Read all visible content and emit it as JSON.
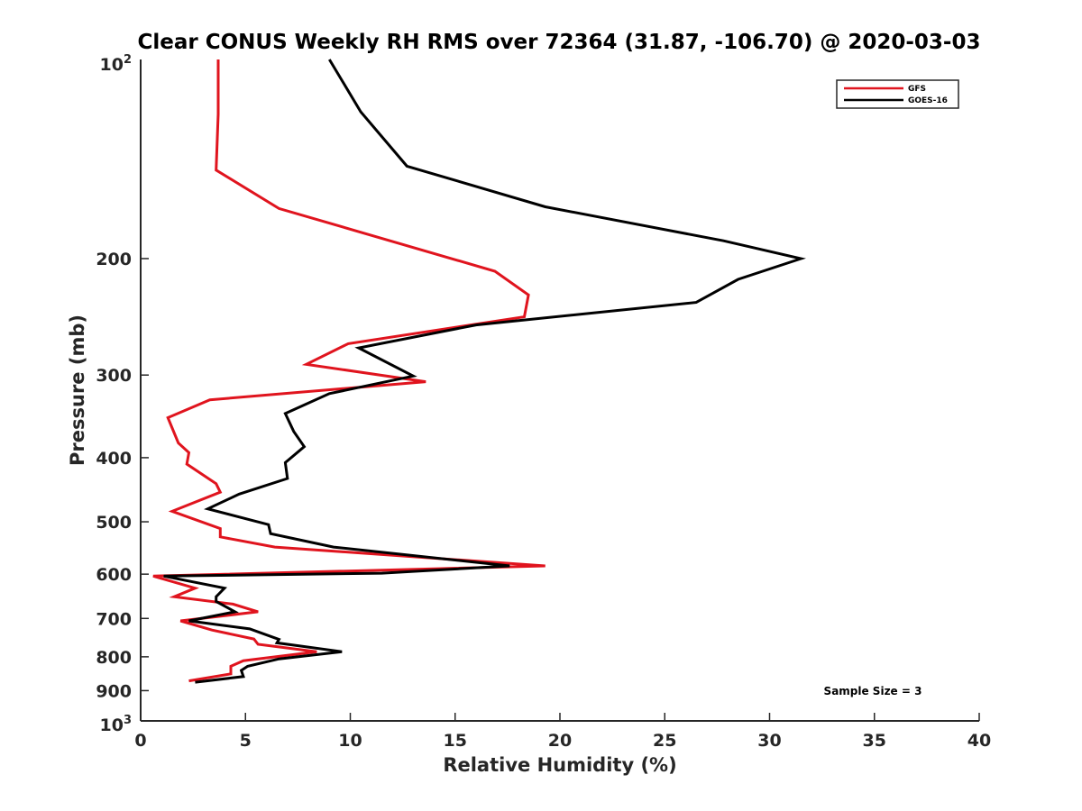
{
  "chart_data": {
    "type": "line",
    "title": "Clear CONUS Weekly RH RMS over 72364 (31.87, -106.70) @ 2020-03-03",
    "xlabel": "Relative Humidity (%)",
    "ylabel": "Pressure (mb)",
    "xlim": [
      0,
      40
    ],
    "ylim": [
      100,
      1000
    ],
    "yscale": "log",
    "yreversed": true,
    "grid": false,
    "legend_placement": "top-right",
    "x_ticks": [
      0,
      5,
      10,
      15,
      20,
      25,
      30,
      35,
      40
    ],
    "x_tick_labels": [
      "0",
      "5",
      "10",
      "15",
      "20",
      "25",
      "30",
      "35",
      "40"
    ],
    "y_ticks": [
      200,
      300,
      400,
      500,
      600,
      700,
      800,
      900
    ],
    "y_tick_labels": [
      "200",
      "300",
      "400",
      "500",
      "600",
      "700",
      "800",
      "900"
    ],
    "y_tick_top": {
      "base": "10",
      "exp": "2"
    },
    "y_tick_bottom": {
      "base": "10",
      "exp": "3"
    },
    "annotation": "Sample Size = 3",
    "series": [
      {
        "name": "GFS",
        "color": "#e0141e",
        "points": [
          [
            3.7,
            100
          ],
          [
            3.7,
            121
          ],
          [
            3.6,
            147
          ],
          [
            6.6,
            168
          ],
          [
            16.9,
            209
          ],
          [
            18.5,
            227
          ],
          [
            18.3,
            245
          ],
          [
            9.9,
            269
          ],
          [
            7.9,
            289
          ],
          [
            13.6,
            307
          ],
          [
            3.3,
            327
          ],
          [
            1.3,
            348
          ],
          [
            1.8,
            380
          ],
          [
            2.3,
            393
          ],
          [
            2.2,
            409
          ],
          [
            3.6,
            438
          ],
          [
            3.8,
            451
          ],
          [
            1.5,
            482
          ],
          [
            3.8,
            512
          ],
          [
            3.8,
            527
          ],
          [
            6.4,
            546
          ],
          [
            19.3,
            583
          ],
          [
            0.6,
            604
          ],
          [
            2.6,
            630
          ],
          [
            1.6,
            649
          ],
          [
            4.4,
            666
          ],
          [
            5.6,
            684
          ],
          [
            1.9,
            706
          ],
          [
            3.4,
            729
          ],
          [
            5.4,
            752
          ],
          [
            5.6,
            766
          ],
          [
            8.4,
            786
          ],
          [
            4.9,
            811
          ],
          [
            4.3,
            827
          ],
          [
            4.3,
            849
          ],
          [
            2.3,
            870
          ]
        ]
      },
      {
        "name": "GOES-16",
        "color": "#000000",
        "points": [
          [
            9.0,
            100
          ],
          [
            10.5,
            120
          ],
          [
            12.7,
            145
          ],
          [
            19.3,
            167
          ],
          [
            27.8,
            188
          ],
          [
            31.5,
            200
          ],
          [
            28.5,
            215
          ],
          [
            26.5,
            233
          ],
          [
            16.0,
            252
          ],
          [
            10.4,
            273
          ],
          [
            13.0,
            301
          ],
          [
            9.0,
            320
          ],
          [
            6.9,
            343
          ],
          [
            7.3,
            365
          ],
          [
            7.8,
            385
          ],
          [
            6.9,
            407
          ],
          [
            7.0,
            430
          ],
          [
            4.7,
            454
          ],
          [
            3.2,
            478
          ],
          [
            6.1,
            505
          ],
          [
            6.2,
            521
          ],
          [
            9.2,
            546
          ],
          [
            17.6,
            583
          ],
          [
            11.5,
            598
          ],
          [
            1.1,
            604
          ],
          [
            4.0,
            630
          ],
          [
            3.6,
            649
          ],
          [
            3.6,
            660
          ],
          [
            4.5,
            684
          ],
          [
            2.3,
            706
          ],
          [
            5.2,
            726
          ],
          [
            6.6,
            753
          ],
          [
            6.5,
            762
          ],
          [
            9.6,
            786
          ],
          [
            6.6,
            806
          ],
          [
            5.1,
            827
          ],
          [
            4.8,
            839
          ],
          [
            4.9,
            857
          ],
          [
            2.6,
            874
          ]
        ]
      }
    ]
  }
}
